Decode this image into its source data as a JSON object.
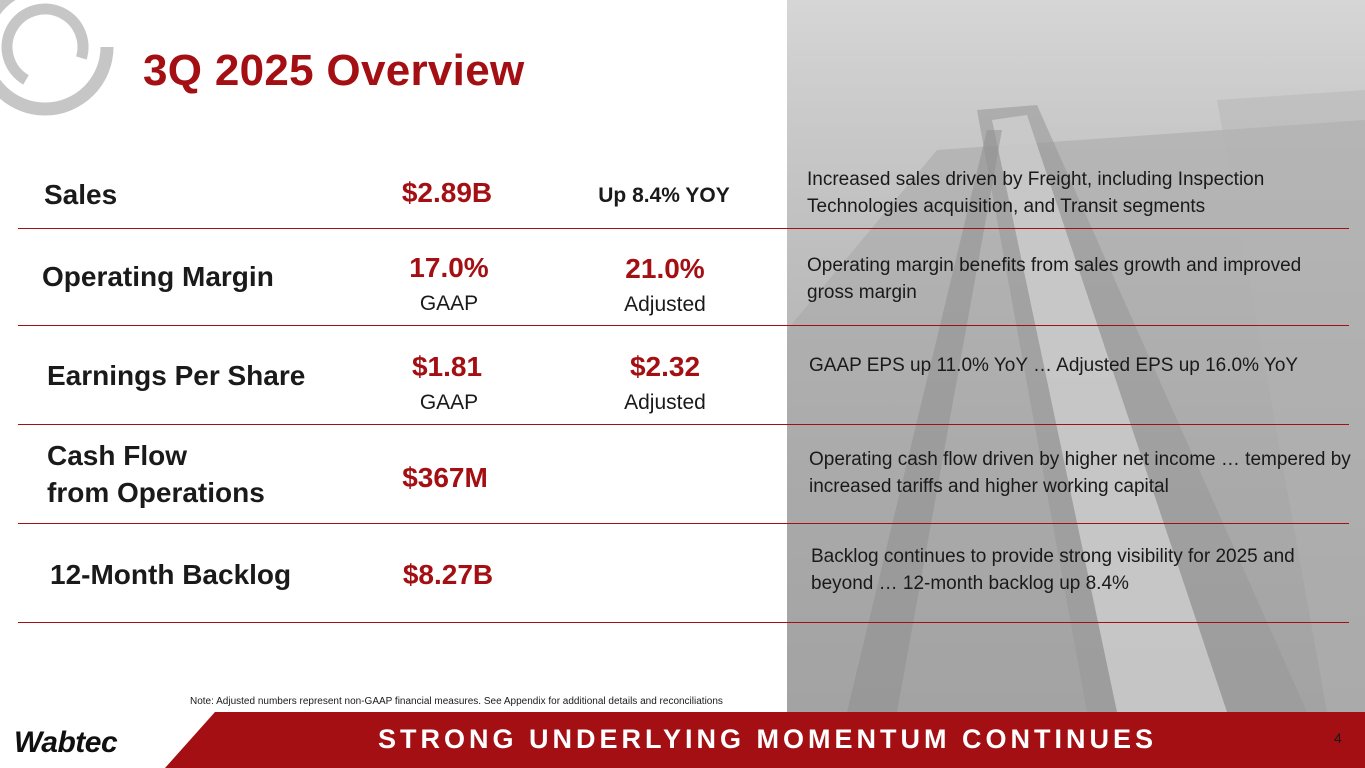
{
  "title": "3Q 2025 Overview",
  "accent_color": "#a30f12",
  "rows": [
    {
      "label": "Sales",
      "value": "$2.89B",
      "value2": "Up 8.4% YOY",
      "desc": "Increased sales driven by Freight, including Inspection Technologies acquisition, and Transit segments"
    },
    {
      "label": "Operating Margin",
      "value": "17.0%",
      "value_sub": "GAAP",
      "value2": "21.0%",
      "value2_sub": "Adjusted",
      "desc": "Operating margin benefits from sales growth and improved gross margin"
    },
    {
      "label": "Earnings Per Share",
      "value": "$1.81",
      "value_sub": "GAAP",
      "value2": "$2.32",
      "value2_sub": "Adjusted",
      "desc": "GAAP EPS up 11.0% YoY … Adjusted EPS up 16.0% YoY"
    },
    {
      "label_line1": "Cash Flow",
      "label_line2": "from Operations",
      "value": "$367M",
      "desc": "Operating cash flow driven by higher net income … tempered by increased tariffs and higher working capital"
    },
    {
      "label": "12-Month Backlog",
      "value": "$8.27B",
      "desc": "Backlog continues to provide strong visibility for 2025 and beyond … 12-month backlog up 8.4%"
    }
  ],
  "note": "Note:  Adjusted numbers represent non-GAAP financial measures. See Appendix for additional details and reconciliations",
  "footer": {
    "brand": "Wabtec",
    "tagline": "STRONG UNDERLYING MOMENTUM CONTINUES",
    "page_number": "4"
  }
}
